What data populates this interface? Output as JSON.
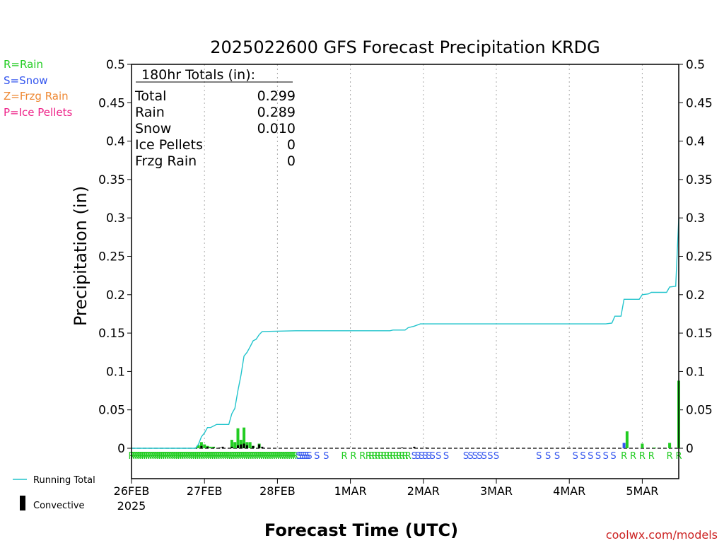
{
  "chart_data": {
    "type": "bar",
    "title": "2025022600 GFS Forecast Precipitation KRDG",
    "xlabel": "Forecast Time (UTC)",
    "ylabel": "Precipitation (in)",
    "ylim": [
      0,
      0.5
    ],
    "yticks": [
      "0",
      "0.05",
      "0.1",
      "0.15",
      "0.2",
      "0.25",
      "0.3",
      "0.35",
      "0.4",
      "0.45",
      "0.5"
    ],
    "xlim": [
      0,
      180
    ],
    "xticks": [
      {
        "label": "26FEB",
        "hour": 0
      },
      {
        "label": "27FEB",
        "hour": 24
      },
      {
        "label": "28FEB",
        "hour": 48
      },
      {
        "label": "1MAR",
        "hour": 72
      },
      {
        "label": "2MAR",
        "hour": 96
      },
      {
        "label": "3MAR",
        "hour": 120
      },
      {
        "label": "4MAR",
        "hour": 144
      },
      {
        "label": "5MAR",
        "hour": 168
      }
    ],
    "year_label": "2025",
    "legend_types": [
      {
        "text": "R=Rain",
        "color": "#22cc22"
      },
      {
        "text": "S=Snow",
        "color": "#3355ee"
      },
      {
        "text": "Z=Frzg Rain",
        "color": "#ee8833"
      },
      {
        "text": "P=Ice Pellets",
        "color": "#ee2288"
      }
    ],
    "legend_series": {
      "running_total": "Running Total",
      "convective": "Convective"
    },
    "totals": {
      "header": "180hr Totals (in):",
      "rows": [
        {
          "label": "Total",
          "value": "0.299"
        },
        {
          "label": "Rain",
          "value": "0.289"
        },
        {
          "label": "Snow",
          "value": "0.010"
        },
        {
          "label": "Ice Pellets",
          "value": "0"
        },
        {
          "label": "Frzg Rain",
          "value": "0"
        }
      ]
    },
    "running_total": [
      [
        0,
        0
      ],
      [
        21,
        0
      ],
      [
        22,
        0.005
      ],
      [
        23,
        0.015
      ],
      [
        24,
        0.02
      ],
      [
        25,
        0.027
      ],
      [
        26,
        0.027
      ],
      [
        27,
        0.029
      ],
      [
        28,
        0.031
      ],
      [
        32,
        0.031
      ],
      [
        33,
        0.045
      ],
      [
        34,
        0.052
      ],
      [
        35,
        0.075
      ],
      [
        36,
        0.095
      ],
      [
        37,
        0.12
      ],
      [
        38,
        0.125
      ],
      [
        39,
        0.132
      ],
      [
        40,
        0.14
      ],
      [
        41,
        0.142
      ],
      [
        42,
        0.148
      ],
      [
        43,
        0.152
      ],
      [
        54,
        0.153
      ],
      [
        85,
        0.153
      ],
      [
        86,
        0.154
      ],
      [
        90,
        0.154
      ],
      [
        91,
        0.157
      ],
      [
        93,
        0.159
      ],
      [
        95,
        0.162
      ],
      [
        156,
        0.162
      ],
      [
        158,
        0.163
      ],
      [
        159,
        0.172
      ],
      [
        161,
        0.172
      ],
      [
        162,
        0.194
      ],
      [
        167,
        0.194
      ],
      [
        168,
        0.2
      ],
      [
        170,
        0.201
      ],
      [
        171,
        0.203
      ],
      [
        176,
        0.203
      ],
      [
        177,
        0.21
      ],
      [
        179,
        0.211
      ],
      [
        180,
        0.299
      ]
    ],
    "bars": [
      {
        "hour": 22,
        "value": 0.004,
        "type": "rain"
      },
      {
        "hour": 23,
        "value": 0.008,
        "type": "rain"
      },
      {
        "hour": 24,
        "value": 0.005,
        "type": "rain"
      },
      {
        "hour": 25,
        "value": 0.003,
        "type": "rain"
      },
      {
        "hour": 26,
        "value": 0.002,
        "type": "rain"
      },
      {
        "hour": 27,
        "value": 0.002,
        "type": "rain"
      },
      {
        "hour": 33,
        "value": 0.011,
        "type": "rain"
      },
      {
        "hour": 34,
        "value": 0.008,
        "type": "rain"
      },
      {
        "hour": 35,
        "value": 0.026,
        "type": "rain"
      },
      {
        "hour": 36,
        "value": 0.011,
        "type": "rain"
      },
      {
        "hour": 37,
        "value": 0.027,
        "type": "rain"
      },
      {
        "hour": 38,
        "value": 0.008,
        "type": "rain"
      },
      {
        "hour": 39,
        "value": 0.008,
        "type": "rain"
      },
      {
        "hour": 40,
        "value": 0.003,
        "type": "rain"
      },
      {
        "hour": 42,
        "value": 0.006,
        "type": "rain"
      },
      {
        "hour": 162,
        "value": 0.007,
        "type": "snow"
      },
      {
        "hour": 163,
        "value": 0.022,
        "type": "rain"
      },
      {
        "hour": 168,
        "value": 0.006,
        "type": "rain"
      },
      {
        "hour": 172,
        "value": 0.001,
        "type": "rain"
      },
      {
        "hour": 177,
        "value": 0.007,
        "type": "rain"
      },
      {
        "hour": 180,
        "value": 0.088,
        "type": "rain"
      }
    ],
    "convective_bars": [
      {
        "hour": 23,
        "value": 0.003
      },
      {
        "hour": 25,
        "value": 0.002
      },
      {
        "hour": 27,
        "value": 0.001
      },
      {
        "hour": 29,
        "value": 0.001
      },
      {
        "hour": 30,
        "value": 0.002
      },
      {
        "hour": 33,
        "value": 0.002
      },
      {
        "hour": 35,
        "value": 0.004
      },
      {
        "hour": 36,
        "value": 0.005
      },
      {
        "hour": 37,
        "value": 0.006
      },
      {
        "hour": 38,
        "value": 0.004
      },
      {
        "hour": 40,
        "value": 0.003
      },
      {
        "hour": 42,
        "value": 0.005
      },
      {
        "hour": 43,
        "value": 0.002
      },
      {
        "hour": 89,
        "value": 0.001
      },
      {
        "hour": 93,
        "value": 0.002
      },
      {
        "hour": 97,
        "value": 0.001
      }
    ],
    "type_markers": [
      {
        "start": 0,
        "end": 54,
        "text": "R",
        "step": 0.7
      },
      {
        "start": 55,
        "end": 59,
        "text": "S",
        "step": 0.7
      },
      {
        "start": 61,
        "end": 64,
        "text": "S",
        "step": 3
      },
      {
        "start": 70,
        "end": 73,
        "text": "R",
        "step": 3
      },
      {
        "start": 76,
        "end": 78,
        "text": "R",
        "step": 2
      },
      {
        "start": 79,
        "end": 91,
        "text": "R",
        "step": 1
      },
      {
        "start": 93,
        "end": 100,
        "text": "S",
        "step": 1.2
      },
      {
        "start": 101,
        "end": 105,
        "text": "S",
        "step": 2.5
      },
      {
        "start": 110,
        "end": 116,
        "text": "S",
        "step": 1.5
      },
      {
        "start": 118,
        "end": 120,
        "text": "S",
        "step": 2
      },
      {
        "start": 134,
        "end": 140,
        "text": "S",
        "step": 3
      },
      {
        "start": 146,
        "end": 160,
        "text": "S",
        "step": 2.5
      },
      {
        "start": 162,
        "end": 171,
        "text": "R",
        "step": 3
      },
      {
        "start": 177,
        "end": 180,
        "text": "R",
        "step": 3
      }
    ],
    "grid": true,
    "watermark": "coolwx.com/models"
  }
}
